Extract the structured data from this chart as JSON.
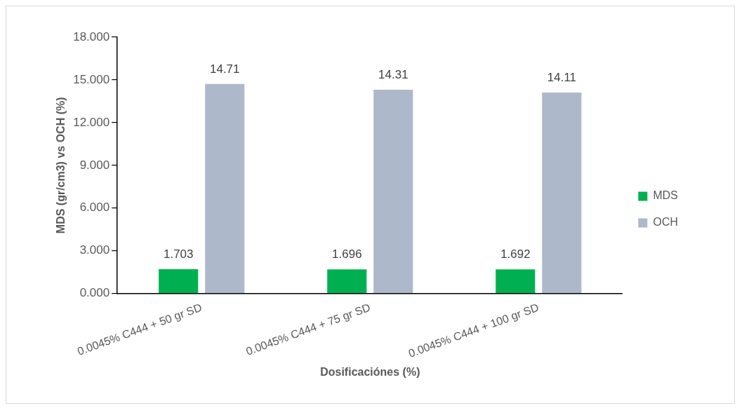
{
  "chart_data": {
    "type": "bar",
    "xlabel": "Dosificaciónes (%)",
    "ylabel": "MDS (gr/cm3) vs OCH (%)",
    "categories": [
      "0.0045% C444 + 50 gr SD",
      "0.0045% C444 + 75 gr SD",
      "0.0045% C444 + 100 gr SD"
    ],
    "series": [
      {
        "name": "MDS",
        "color": "#00b050",
        "values": [
          1.703,
          1.696,
          1.692
        ]
      },
      {
        "name": "OCH",
        "color": "#adb9ca",
        "values": [
          14.71,
          14.31,
          14.11
        ]
      }
    ],
    "ylim": [
      0,
      18
    ],
    "yticks": [
      {
        "value": 0,
        "label": "0.000"
      },
      {
        "value": 3,
        "label": "3.000"
      },
      {
        "value": 6,
        "label": "6.000"
      },
      {
        "value": 9,
        "label": "9.000"
      },
      {
        "value": 12,
        "label": "12.000"
      },
      {
        "value": 15,
        "label": "15.000"
      },
      {
        "value": 18,
        "label": "18.000"
      }
    ],
    "grid": false,
    "legend": "right",
    "data_labels": true
  }
}
